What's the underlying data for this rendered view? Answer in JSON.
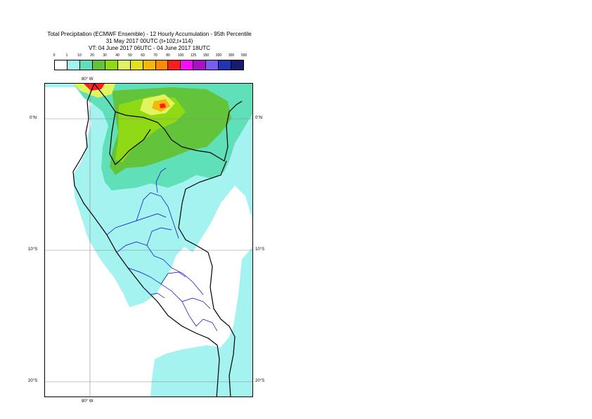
{
  "title": {
    "line1": "Total Precipitation (ECMWF Ensemble) - 12 Hourly Accumulation - 95th Percentile",
    "line2": "31 May 2017 00UTC (t+102,t+114)",
    "line3": "VT: 04 June 2017 06UTC - 04 June 2017 18UTC"
  },
  "legend": {
    "ticks": [
      "0",
      "1",
      "10",
      "20",
      "30",
      "40",
      "50",
      "60",
      "70",
      "80",
      "100",
      "125",
      "150",
      "200",
      "300",
      "500"
    ],
    "colors": [
      "#ffffff",
      "#a5f3f0",
      "#5fe0b8",
      "#63c43c",
      "#8fd915",
      "#dff45e",
      "#e1e21b",
      "#f5b80a",
      "#fb8a0b",
      "#ff1c1c",
      "#f80df8",
      "#a812c7",
      "#7a5cf0",
      "#2233b4",
      "#181c6e"
    ]
  },
  "axes": {
    "lon_top": "80° W",
    "lon_bottom": "80° W",
    "lat_left": [
      "0°N",
      "10°S",
      "20°S"
    ],
    "lat_right": [
      "0°N",
      "10°S",
      "20°S"
    ]
  },
  "map": {
    "land_color": "#ffffff",
    "light_cyan": "#a5f3f0",
    "green_teal": "#5fe0b8",
    "green": "#63c43c",
    "yellow_green": "#8fd915",
    "yellow": "#dff45e",
    "orange": "#f5b80a",
    "red": "#ff1c1c",
    "border_color": "#000000",
    "admin_color": "#0000cc",
    "gridline_color": "#8a8a8a"
  }
}
